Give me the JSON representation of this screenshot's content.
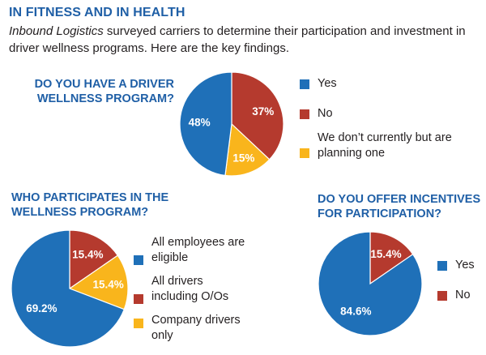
{
  "header": {
    "title": "IN FITNESS AND IN HEALTH",
    "intro_italic": "Inbound Logistics",
    "intro_rest": " surveyed carriers to determine their participation and investment in driver wellness programs. Here are the key findings."
  },
  "colors": {
    "blue": "#1f70b8",
    "red": "#b53a2e",
    "yellow": "#f9b51c"
  },
  "chart_data": [
    {
      "type": "pie",
      "title": "DO YOU HAVE A DRIVER WELLNESS PROGRAM?",
      "categories": [
        "Yes",
        "No",
        "We don’t currently but are planning one"
      ],
      "values": [
        48,
        37,
        15
      ],
      "labels": [
        "48%",
        "37%",
        "15%"
      ],
      "colors": [
        "#1f70b8",
        "#b53a2e",
        "#f9b51c"
      ],
      "legend": "right"
    },
    {
      "type": "pie",
      "title": "WHO PARTICIPATES IN THE WELLNESS PROGRAM?",
      "categories": [
        "All employees are eligible",
        "All drivers including O/Os",
        "Company drivers only"
      ],
      "values": [
        69.2,
        15.4,
        15.4
      ],
      "labels": [
        "69.2%",
        "15.4%",
        "15.4%"
      ],
      "colors": [
        "#1f70b8",
        "#b53a2e",
        "#f9b51c"
      ],
      "legend": "right"
    },
    {
      "type": "pie",
      "title": "DO YOU OFFER INCENTIVES FOR PARTICIPATION?",
      "categories": [
        "Yes",
        "No"
      ],
      "values": [
        84.6,
        15.4
      ],
      "labels": [
        "84.6%",
        "15.4%"
      ],
      "colors": [
        "#1f70b8",
        "#b53a2e"
      ],
      "legend": "right"
    }
  ]
}
